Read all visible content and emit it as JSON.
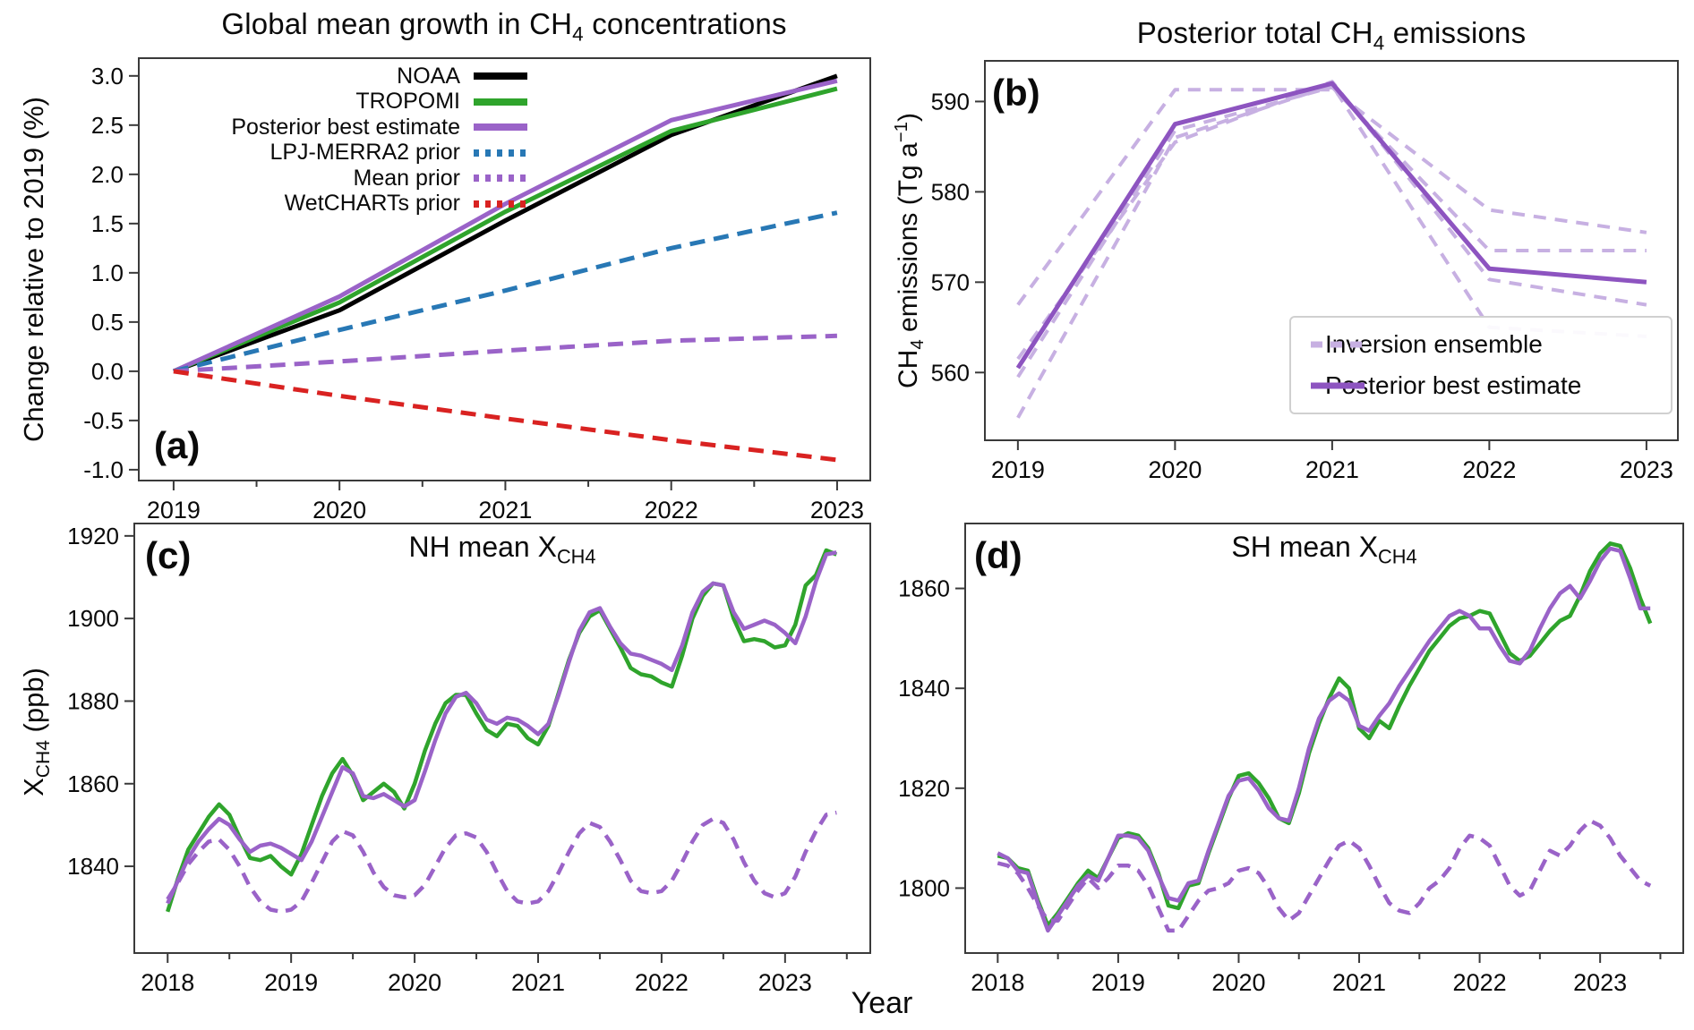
{
  "figure": {
    "xlabel": "Year"
  },
  "chart_data": [
    {
      "panel": "a",
      "type": "line",
      "panel_label": "(a)",
      "title": {
        "pre": "Global mean growth in CH",
        "sub": "4",
        "post": " concentrations"
      },
      "ylabel": {
        "pre": "Change relative to 2019 (%)"
      },
      "xlim": [
        2018.79,
        2023.2
      ],
      "ylim": [
        -1.11,
        3.18
      ],
      "xticks": {
        "values": [
          2019,
          2020,
          2021,
          2022,
          2023
        ],
        "labels": [
          "2019",
          "2020",
          "2021",
          "2022",
          "2023"
        ],
        "minor": [
          2019.5,
          2020.5,
          2021.5,
          2022.5
        ]
      },
      "yticks": {
        "values": [
          -1.0,
          -0.5,
          0.0,
          0.5,
          1.0,
          1.5,
          2.0,
          2.5,
          3.0
        ],
        "labels": [
          "-1.0",
          "-0.5",
          "0.0",
          "0.5",
          "1.0",
          "1.5",
          "2.0",
          "2.5",
          "3.0"
        ]
      },
      "x": [
        2019,
        2020,
        2021,
        2022,
        2023
      ],
      "series": [
        {
          "name": "NOAA",
          "color": "#000000",
          "width": 5,
          "dash": null,
          "values": [
            0.0,
            0.62,
            1.53,
            2.4,
            3.0
          ]
        },
        {
          "name": "TROPOMI",
          "color": "#2fa42c",
          "width": 5,
          "dash": null,
          "values": [
            0.0,
            0.7,
            1.62,
            2.44,
            2.87
          ]
        },
        {
          "name": "Posterior best estimate",
          "color": "#9a63c8",
          "width": 5,
          "dash": null,
          "values": [
            0.0,
            0.76,
            1.7,
            2.55,
            2.95
          ]
        },
        {
          "name": "LPJ-MERRA2 prior",
          "color": "#2878b5",
          "width": 5,
          "dash": "17 10",
          "values": [
            0.0,
            0.42,
            0.82,
            1.25,
            1.61
          ]
        },
        {
          "name": "Mean prior",
          "color": "#9a63c8",
          "width": 5,
          "dash": "17 10",
          "values": [
            0.0,
            0.1,
            0.21,
            0.31,
            0.36
          ]
        },
        {
          "name": "WetCHARTs prior",
          "color": "#d92221",
          "width": 5,
          "dash": "17 10",
          "values": [
            0.0,
            -0.25,
            -0.48,
            -0.7,
            -0.9
          ]
        }
      ],
      "legend": {
        "items": [
          {
            "label": "NOAA",
            "color": "#000000",
            "dash": null,
            "width": 8
          },
          {
            "label": "TROPOMI",
            "color": "#2fa42c",
            "dash": null,
            "width": 8
          },
          {
            "label": "Posterior best estimate",
            "color": "#9a63c8",
            "dash": null,
            "width": 8
          },
          {
            "label": "LPJ-MERRA2 prior",
            "color": "#2878b5",
            "dash": "6 7",
            "width": 8
          },
          {
            "label": "Mean prior",
            "color": "#9a63c8",
            "dash": "6 7",
            "width": 8
          },
          {
            "label": "WetCHARTs prior",
            "color": "#d92221",
            "dash": "6 7",
            "width": 8
          }
        ]
      }
    },
    {
      "panel": "b",
      "type": "line",
      "panel_label": "(b)",
      "title": {
        "pre": "Posterior total CH",
        "sub": "4",
        "post": " emissions"
      },
      "ylabel": {
        "pre": "CH",
        "sub": "4",
        "mid": " emissions (Tg a",
        "sup": "−1",
        "post": ")"
      },
      "xlim": [
        2018.79,
        2023.2
      ],
      "ylim": [
        552.5,
        594.5
      ],
      "xticks": {
        "values": [
          2019,
          2020,
          2021,
          2022,
          2023
        ],
        "labels": [
          "2019",
          "2020",
          "2021",
          "2022",
          "2023"
        ],
        "minor": []
      },
      "yticks": {
        "values": [
          560,
          570,
          580,
          590
        ],
        "labels": [
          "560",
          "570",
          "580",
          "590"
        ]
      },
      "x": [
        2019,
        2020,
        2021,
        2022,
        2023
      ],
      "series": [
        {
          "name": "Inversion ensemble member 1",
          "color": "#c7b0e2",
          "width": 4,
          "dash": "14 10",
          "values": [
            567.5,
            591.3,
            591.3,
            578.0,
            575.5
          ]
        },
        {
          "name": "Inversion ensemble member 2",
          "color": "#c7b0e2",
          "width": 4,
          "dash": "14 10",
          "values": [
            559.5,
            586.8,
            591.6,
            573.5,
            573.5
          ]
        },
        {
          "name": "Inversion ensemble member 3",
          "color": "#c7b0e2",
          "width": 4,
          "dash": "14 10",
          "values": [
            561.5,
            585.5,
            592.2,
            570.3,
            567.5
          ]
        },
        {
          "name": "Inversion ensemble member 4",
          "color": "#c7b0e2",
          "width": 4,
          "dash": "14 10",
          "values": [
            555.0,
            586.0,
            591.8,
            565.0,
            564.0
          ]
        },
        {
          "name": "Posterior best estimate",
          "color": "#8d54c0",
          "width": 5,
          "dash": null,
          "values": [
            560.5,
            587.5,
            592.0,
            571.5,
            570.0
          ]
        }
      ],
      "legend": {
        "items": [
          {
            "label": "Inversion ensemble",
            "color": "#c7b0e2",
            "dash": "13 9",
            "width": 7
          },
          {
            "label": "Posterior best estimate",
            "color": "#8d54c0",
            "dash": null,
            "width": 7
          }
        ]
      }
    },
    {
      "panel": "c",
      "type": "line",
      "panel_label": "(c)",
      "title": {
        "pre": "NH mean X",
        "sub": "CH4"
      },
      "ylabel": {
        "pre": "X",
        "sub": "CH4",
        "post": " (ppb)"
      },
      "xlim": [
        2017.73,
        2023.69
      ],
      "ylim": [
        1819,
        1923
      ],
      "xticks": {
        "values": [
          2018,
          2019,
          2020,
          2021,
          2022,
          2023
        ],
        "labels": [
          "2018",
          "2019",
          "2020",
          "2021",
          "2022",
          "2023"
        ],
        "minor": [
          2018.5,
          2019.5,
          2020.5,
          2021.5,
          2022.5,
          2023.5
        ]
      },
      "yticks": {
        "values": [
          1840,
          1860,
          1880,
          1900,
          1920
        ],
        "labels": [
          "1840",
          "1860",
          "1880",
          "1900",
          "1920"
        ]
      },
      "x_start": 2018.0,
      "x_step": 0.0833333,
      "series": [
        {
          "name": "TROPOMI",
          "color": "#2fa42c",
          "width": 4.5,
          "dash": null,
          "values": [
            1829,
            1837,
            1844,
            1848,
            1852,
            1855,
            1852.5,
            1847,
            1842,
            1841.5,
            1842.5,
            1840,
            1838,
            1843,
            1850,
            1857,
            1862.5,
            1866,
            1862,
            1856,
            1858,
            1860,
            1858,
            1854,
            1860,
            1868,
            1874.5,
            1879.5,
            1881.5,
            1881.5,
            1877,
            1873,
            1871.5,
            1874.5,
            1874,
            1871,
            1869.5,
            1874,
            1882,
            1890,
            1896.5,
            1900.5,
            1902,
            1897.5,
            1893,
            1888,
            1886.5,
            1886,
            1884.5,
            1883.5,
            1891,
            1900,
            1905.5,
            1908.5,
            1908,
            1900,
            1894.5,
            1895,
            1894.5,
            1893,
            1893.5,
            1898.5,
            1908,
            1910.5,
            1916.5,
            1915.5
          ]
        },
        {
          "name": "Mean prior",
          "color": "#9a63c8",
          "width": 4.5,
          "dash": "14 9",
          "values": [
            1832,
            1836,
            1840.5,
            1843.5,
            1846,
            1846.5,
            1844,
            1840,
            1835,
            1831.5,
            1829.5,
            1829,
            1829.5,
            1831.5,
            1836,
            1841,
            1846,
            1848.5,
            1847.5,
            1843.5,
            1838.5,
            1835,
            1833,
            1832.5,
            1833,
            1835.5,
            1840,
            1844.5,
            1847.5,
            1848,
            1847,
            1843.5,
            1838.5,
            1834,
            1831.5,
            1831,
            1831.5,
            1834,
            1838.5,
            1843.5,
            1848,
            1850.5,
            1849.5,
            1846,
            1841.5,
            1836.5,
            1834,
            1833.5,
            1834,
            1836.5,
            1841,
            1846,
            1850,
            1851.5,
            1850.5,
            1846.5,
            1841,
            1836.5,
            1833.5,
            1832.5,
            1833.5,
            1837.5,
            1843.5,
            1848.5,
            1852.5,
            1853
          ]
        },
        {
          "name": "Posterior best estimate",
          "color": "#9a63c8",
          "width": 4.5,
          "dash": null,
          "values": [
            1831,
            1836.5,
            1842,
            1846,
            1849,
            1851.5,
            1850,
            1846.5,
            1843.5,
            1845,
            1845.5,
            1844.5,
            1843,
            1841.5,
            1846,
            1852,
            1858,
            1864,
            1862.5,
            1857,
            1856.5,
            1857.5,
            1856,
            1854.5,
            1856,
            1863,
            1870.5,
            1877,
            1881,
            1882,
            1879.5,
            1875.5,
            1874.5,
            1876,
            1875.5,
            1874,
            1872,
            1874.5,
            1881.5,
            1889.5,
            1897,
            1901.5,
            1902.5,
            1898,
            1894,
            1891.5,
            1891,
            1890,
            1889,
            1887.5,
            1893.5,
            1901.5,
            1906.5,
            1908.5,
            1908,
            1901.5,
            1897.5,
            1898.5,
            1899.5,
            1898.5,
            1896.5,
            1894,
            1900.5,
            1909,
            1915.5,
            1916
          ]
        }
      ]
    },
    {
      "panel": "d",
      "type": "line",
      "panel_label": "(d)",
      "title": {
        "pre": "SH mean X",
        "sub": "CH4"
      },
      "xlim": [
        2017.73,
        2023.69
      ],
      "ylim": [
        1787,
        1873
      ],
      "xticks": {
        "values": [
          2018,
          2019,
          2020,
          2021,
          2022,
          2023
        ],
        "labels": [
          "2018",
          "2019",
          "2020",
          "2021",
          "2022",
          "2023"
        ],
        "minor": [
          2018.5,
          2019.5,
          2020.5,
          2021.5,
          2022.5,
          2023.5
        ]
      },
      "yticks": {
        "values": [
          1800,
          1820,
          1840,
          1860
        ],
        "labels": [
          "1800",
          "1820",
          "1840",
          "1860"
        ]
      },
      "x_start": 2018.0,
      "x_step": 0.0833333,
      "series": [
        {
          "name": "TROPOMI",
          "color": "#2fa42c",
          "width": 4.5,
          "dash": null,
          "values": [
            1806.5,
            1806,
            1804,
            1803.5,
            1797.5,
            1792.5,
            1795,
            1798,
            1801,
            1803.5,
            1802,
            1806,
            1810,
            1811,
            1810.5,
            1808,
            1803,
            1796.5,
            1796,
            1800.5,
            1801,
            1807,
            1812.5,
            1818,
            1822.5,
            1823,
            1821,
            1818,
            1814,
            1813,
            1819,
            1827,
            1833,
            1838,
            1842,
            1840,
            1832,
            1830,
            1833.5,
            1832,
            1836.5,
            1840.5,
            1844,
            1847.5,
            1850,
            1852.5,
            1854,
            1854.5,
            1855.5,
            1855,
            1851,
            1847,
            1845.5,
            1846.5,
            1849,
            1851.5,
            1853.5,
            1854.5,
            1858.5,
            1863.5,
            1867,
            1869,
            1868.5,
            1864,
            1858,
            1853
          ]
        },
        {
          "name": "Mean prior",
          "color": "#9a63c8",
          "width": 4.5,
          "dash": "14 9",
          "values": [
            1805,
            1804.5,
            1803,
            1800,
            1796.5,
            1793.5,
            1793.5,
            1796.5,
            1799.5,
            1802,
            1800,
            1802,
            1804.5,
            1804.5,
            1803.5,
            1800.5,
            1796,
            1791.5,
            1791.5,
            1794.5,
            1797.5,
            1799.5,
            1800,
            1801,
            1803.5,
            1804,
            1803,
            1800,
            1796,
            1793.5,
            1795,
            1798.5,
            1802,
            1805.5,
            1808.5,
            1809.5,
            1808,
            1804.5,
            1800.5,
            1797,
            1795.5,
            1795,
            1797,
            1800,
            1801.5,
            1804,
            1808,
            1810.5,
            1810,
            1808.5,
            1804.5,
            1800.5,
            1798.5,
            1799.5,
            1803.5,
            1807.5,
            1806.5,
            1808.5,
            1811.5,
            1813.5,
            1812.5,
            1810,
            1806.5,
            1804,
            1801.5,
            1800.5
          ]
        },
        {
          "name": "Posterior best estimate",
          "color": "#9a63c8",
          "width": 4.5,
          "dash": null,
          "values": [
            1807,
            1806,
            1803.5,
            1803,
            1797,
            1791.5,
            1794.5,
            1797.5,
            1800.5,
            1802.5,
            1801.5,
            1806,
            1810.5,
            1810.5,
            1810,
            1807.5,
            1802.5,
            1798,
            1797.5,
            1801,
            1801.5,
            1807.5,
            1813,
            1818.5,
            1821.5,
            1822,
            1819.5,
            1816,
            1814,
            1813.5,
            1820,
            1828,
            1834,
            1837.5,
            1839,
            1837.5,
            1832.5,
            1831.5,
            1834.5,
            1837,
            1840.5,
            1843.5,
            1846.5,
            1849.5,
            1852,
            1854.5,
            1855.5,
            1854.5,
            1852,
            1852,
            1848.5,
            1845.5,
            1845,
            1847.5,
            1852,
            1856,
            1859,
            1860.5,
            1858,
            1861.5,
            1865.5,
            1868,
            1867.5,
            1862,
            1856,
            1856
          ]
        }
      ]
    }
  ]
}
